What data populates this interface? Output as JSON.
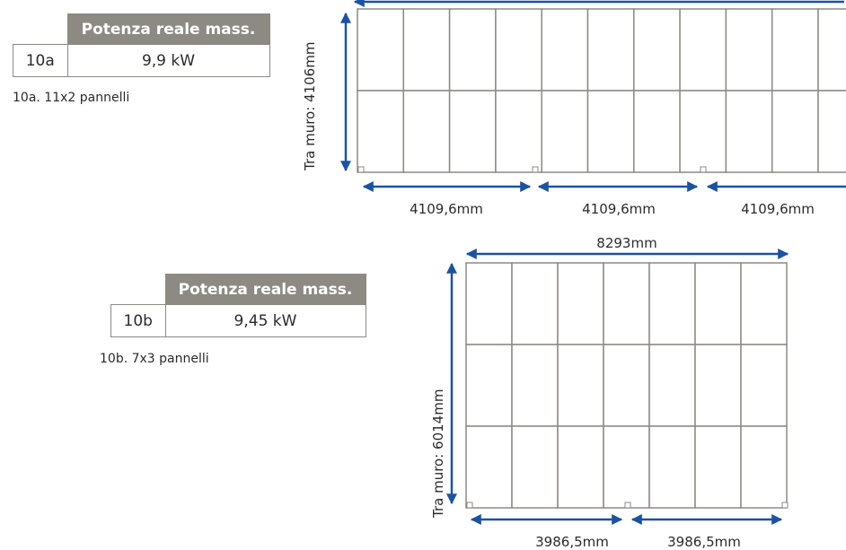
{
  "section_a": {
    "table_header": "Potenza reale mass.",
    "id": "10a",
    "power": "9,9 kW",
    "caption": "10a. 11x2 pannelli",
    "height_label": "Tra muro: 4106mm",
    "width_labels": [
      "4109,6mm",
      "4109,6mm",
      "4109,6mm"
    ],
    "panels_columns": 11,
    "panels_rows": 2
  },
  "section_b": {
    "table_header": "Potenza reale mass.",
    "id": "10b",
    "power": "9,45 kW",
    "caption": "10b. 7x3 pannelli",
    "height_label": "Tra muro: 6014mm",
    "total_width_label": "8293mm",
    "width_labels": [
      "3986,5mm",
      "3986,5mm"
    ],
    "panels_columns": 7,
    "panels_rows": 3
  },
  "colors": {
    "arrow": "#1b53a0",
    "panel_line": "#8d8a84",
    "header_bg": "#8d8a84"
  }
}
